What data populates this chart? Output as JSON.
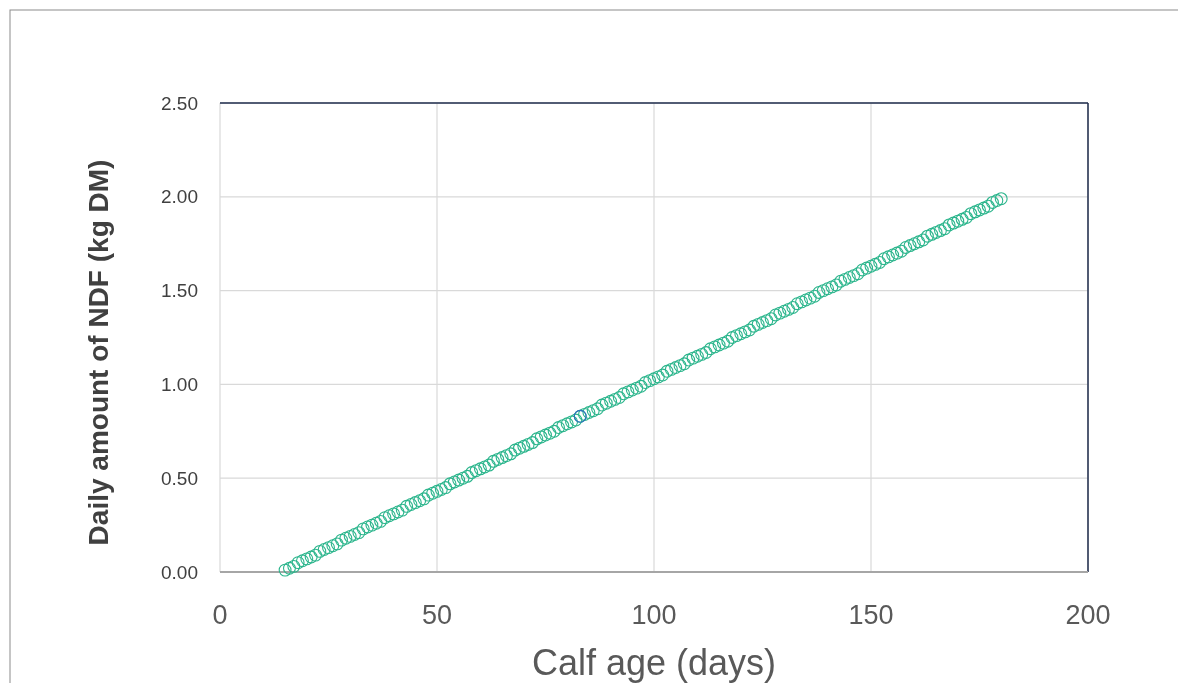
{
  "chart_data": {
    "type": "scatter",
    "xlabel": "Calf age (days)",
    "ylabel": "Daily amount of NDF (kg DM)",
    "xlim": [
      0,
      200
    ],
    "xticks": [
      0,
      50,
      100,
      150,
      200
    ],
    "ylim": [
      0,
      2.5
    ],
    "yticks": [
      {
        "value": 0,
        "label": "0.00"
      },
      {
        "value": 0.5,
        "label": "0.50"
      },
      {
        "value": 1,
        "label": "1.00"
      },
      {
        "value": 1.5,
        "label": "1.50"
      },
      {
        "value": 2,
        "label": "2.00"
      },
      {
        "value": 2.5,
        "label": "2.50"
      }
    ],
    "grid": true,
    "marker": "circle",
    "series": [
      {
        "color": "#2bb58c",
        "x": [
          15,
          16,
          17,
          18,
          19,
          20,
          21,
          22,
          23,
          24,
          25,
          26,
          27,
          28,
          29,
          30,
          31,
          32,
          33,
          34,
          35,
          36,
          37,
          38,
          39,
          40,
          41,
          42,
          43,
          44,
          45,
          46,
          47,
          48,
          49,
          50,
          51,
          52,
          53,
          54,
          55,
          56,
          57,
          58,
          59,
          60,
          61,
          62,
          63,
          64,
          65,
          66,
          67,
          68,
          69,
          70,
          71,
          72,
          73,
          74,
          75,
          76,
          77,
          78,
          79,
          80,
          81,
          82,
          83,
          84,
          85,
          86,
          87,
          88,
          89,
          90,
          91,
          92,
          93,
          94,
          95,
          96,
          97,
          98,
          99,
          100,
          101,
          102,
          103,
          104,
          105,
          106,
          107,
          108,
          109,
          110,
          111,
          112,
          113,
          114,
          115,
          116,
          117,
          118,
          119,
          120,
          121,
          122,
          123,
          124,
          125,
          126,
          127,
          128,
          129,
          130,
          131,
          132,
          133,
          134,
          135,
          136,
          137,
          138,
          139,
          140,
          141,
          142,
          143,
          144,
          145,
          146,
          147,
          148,
          149,
          150,
          151,
          152,
          153,
          154,
          155,
          156,
          157,
          158,
          159,
          160,
          161,
          162,
          163,
          164,
          165,
          166,
          167,
          168,
          169,
          170,
          171,
          172,
          173,
          174,
          175,
          176,
          177,
          178,
          179,
          180
        ],
        "values": [
          0.01,
          0.02,
          0.03,
          0.05,
          0.06,
          0.07,
          0.08,
          0.09,
          0.11,
          0.12,
          0.13,
          0.14,
          0.15,
          0.17,
          0.18,
          0.19,
          0.2,
          0.21,
          0.23,
          0.24,
          0.25,
          0.26,
          0.27,
          0.29,
          0.3,
          0.31,
          0.32,
          0.33,
          0.35,
          0.36,
          0.37,
          0.38,
          0.39,
          0.41,
          0.42,
          0.43,
          0.44,
          0.45,
          0.47,
          0.48,
          0.49,
          0.5,
          0.51,
          0.53,
          0.54,
          0.55,
          0.56,
          0.57,
          0.59,
          0.6,
          0.61,
          0.62,
          0.63,
          0.65,
          0.66,
          0.67,
          0.68,
          0.69,
          0.71,
          0.72,
          0.73,
          0.74,
          0.75,
          0.77,
          0.78,
          0.79,
          0.8,
          0.81,
          0.83,
          0.84,
          0.85,
          0.86,
          0.87,
          0.89,
          0.9,
          0.91,
          0.92,
          0.93,
          0.95,
          0.96,
          0.97,
          0.98,
          0.99,
          1.01,
          1.02,
          1.03,
          1.04,
          1.05,
          1.07,
          1.08,
          1.09,
          1.1,
          1.11,
          1.13,
          1.14,
          1.15,
          1.16,
          1.17,
          1.19,
          1.2,
          1.21,
          1.22,
          1.23,
          1.25,
          1.26,
          1.27,
          1.28,
          1.29,
          1.31,
          1.32,
          1.33,
          1.34,
          1.35,
          1.37,
          1.38,
          1.39,
          1.4,
          1.41,
          1.43,
          1.44,
          1.45,
          1.46,
          1.47,
          1.49,
          1.5,
          1.51,
          1.52,
          1.53,
          1.55,
          1.56,
          1.57,
          1.58,
          1.59,
          1.61,
          1.62,
          1.63,
          1.64,
          1.65,
          1.67,
          1.68,
          1.69,
          1.7,
          1.71,
          1.73,
          1.74,
          1.75,
          1.76,
          1.77,
          1.79,
          1.8,
          1.81,
          1.82,
          1.83,
          1.85,
          1.86,
          1.87,
          1.88,
          1.89,
          1.91,
          1.92,
          1.93,
          1.94,
          1.95,
          1.97,
          1.98,
          1.99
        ]
      },
      {
        "color": "#2e6fbf",
        "x": [
          83
        ],
        "values": [
          0.83
        ]
      }
    ]
  }
}
